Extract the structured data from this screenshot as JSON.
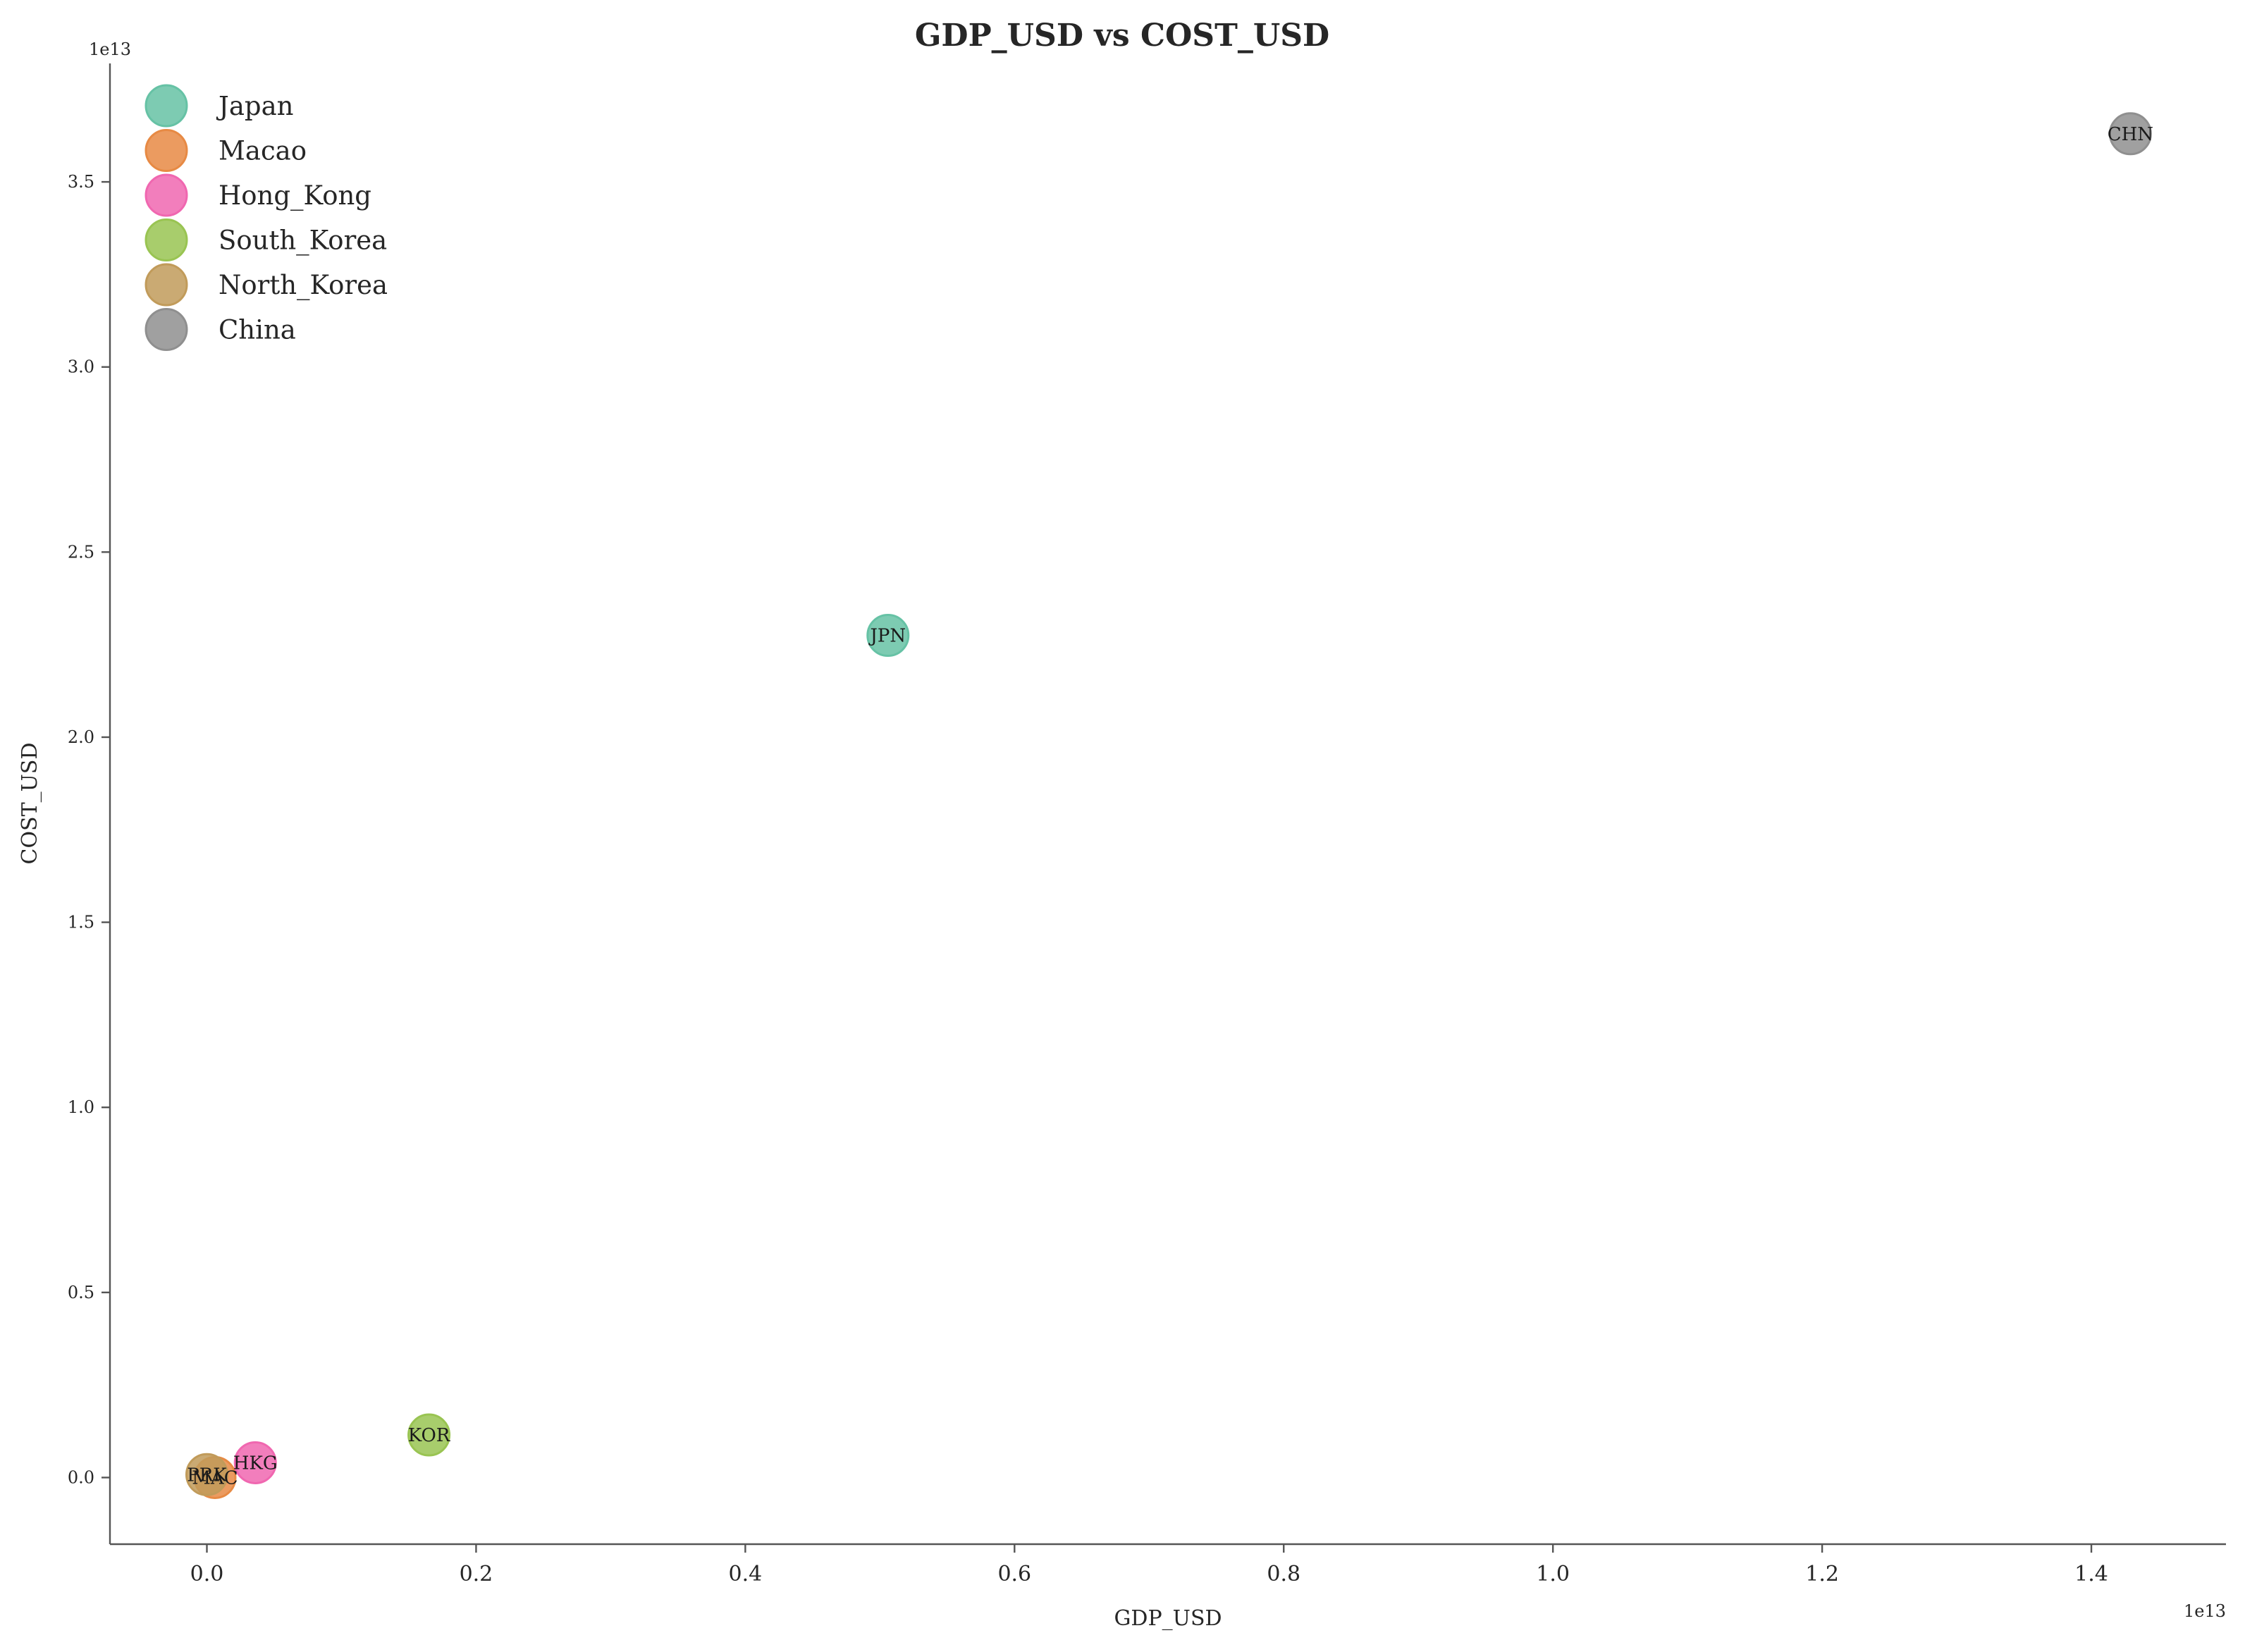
{
  "chart_data": {
    "type": "scatter",
    "title": "GDP_USD vs COST_USD",
    "xlabel": "GDP_USD",
    "ylabel": "COST_USD",
    "x_offset_label": "1e13",
    "y_offset_label": "1e13",
    "xlim": [
      -0.072,
      1.5
    ],
    "ylim": [
      -0.18,
      3.82
    ],
    "x_ticks": [
      0.0,
      0.2,
      0.4,
      0.6,
      0.8,
      1.0,
      1.2,
      1.4
    ],
    "x_tick_labels": [
      "0.0",
      "0.2",
      "0.4",
      "0.6",
      "0.8",
      "1.0",
      "1.2",
      "1.4"
    ],
    "y_ticks": [
      0.0,
      0.5,
      1.0,
      1.5,
      2.0,
      2.5,
      3.0,
      3.5
    ],
    "y_tick_labels": [
      "0.0",
      "0.5",
      "1.0",
      "1.5",
      "2.0",
      "2.5",
      "3.0",
      "3.5"
    ],
    "grid": false,
    "legend_position": "top-left",
    "series": [
      {
        "name": "Japan",
        "code": "JPN",
        "color": "#66c2a5",
        "x": 0.506,
        "y": 2.275
      },
      {
        "name": "Macao",
        "code": "MAC",
        "color": "#e78a44",
        "x": 0.006,
        "y": 0.0
      },
      {
        "name": "Hong_Kong",
        "code": "HKG",
        "color": "#f067b0",
        "x": 0.036,
        "y": 0.04
      },
      {
        "name": "South_Korea",
        "code": "KOR",
        "color": "#99c452",
        "x": 0.165,
        "y": 0.115
      },
      {
        "name": "North_Korea",
        "code": "PRK",
        "color": "#c19b5a",
        "x": 0.0,
        "y": 0.008
      },
      {
        "name": "China",
        "code": "CHN",
        "color": "#8f8f8f",
        "x": 1.429,
        "y": 3.63
      }
    ]
  }
}
